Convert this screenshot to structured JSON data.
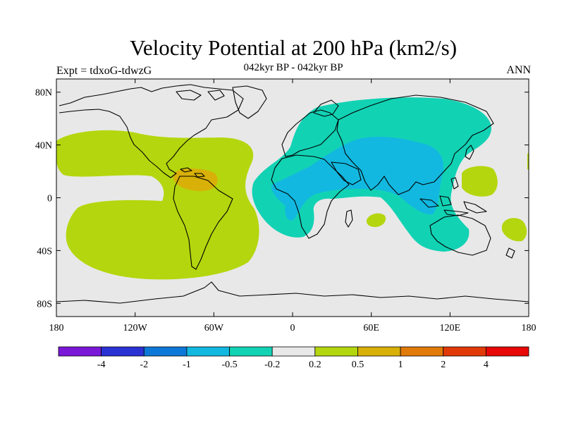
{
  "header": {
    "title": "Velocity Potential at 200 hPa (km2/s)",
    "subtitle": "042kyr BP - 042kyr BP",
    "left_note": "Expt = tdxoG-tdwzG",
    "right_note": "ANN"
  },
  "axes": {
    "y_ticks": [
      {
        "value": 80,
        "label": "80N"
      },
      {
        "value": 40,
        "label": "40N"
      },
      {
        "value": 0,
        "label": "0"
      },
      {
        "value": -40,
        "label": "40S"
      },
      {
        "value": -80,
        "label": "80S"
      }
    ],
    "x_ticks": [
      {
        "value": -180,
        "label": "180"
      },
      {
        "value": -120,
        "label": "120W"
      },
      {
        "value": -60,
        "label": "60W"
      },
      {
        "value": 0,
        "label": "0"
      },
      {
        "value": 60,
        "label": "60E"
      },
      {
        "value": 120,
        "label": "120E"
      },
      {
        "value": 180,
        "label": "180"
      }
    ],
    "lon_range": [
      -180,
      180
    ],
    "lat_range": [
      -90,
      90
    ]
  },
  "colorbar": {
    "colors": [
      "#7a18d8",
      "#2a32d4",
      "#0e78d8",
      "#12b8e0",
      "#12d2b4",
      "#e8e8e8",
      "#b4d60e",
      "#d8b008",
      "#e07a08",
      "#e03a08",
      "#e80808"
    ],
    "labels": [
      "-4",
      "-2",
      "-1",
      "-0.5",
      "-0.2",
      "0.2",
      "0.5",
      "1",
      "2",
      "4"
    ]
  },
  "colors": {
    "background": "#e8e8e8",
    "positive_weak": "#b4d60e",
    "positive_mid": "#d8b008",
    "negative_weak": "#12d2b4",
    "negative_mid": "#12b8e0",
    "coastline": "#000000"
  }
}
